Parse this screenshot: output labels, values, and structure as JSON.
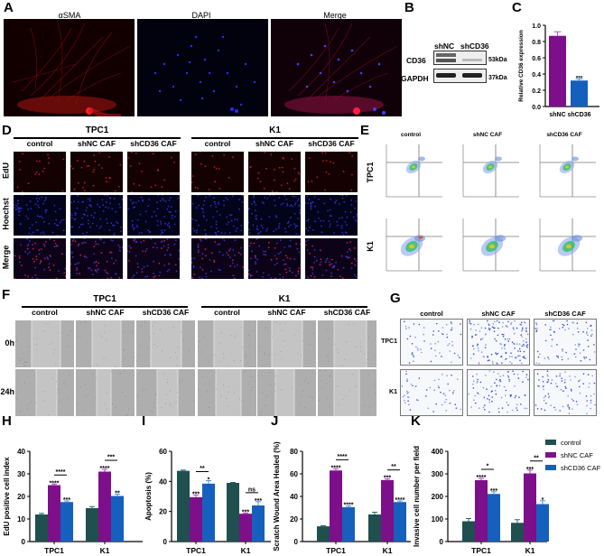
{
  "panels": {
    "A": {
      "label": "A",
      "columns": [
        "αSMA",
        "DAPI",
        "Merge"
      ]
    },
    "B": {
      "label": "B",
      "lanes": [
        "shNC",
        "shCD36"
      ],
      "rows": [
        {
          "protein": "CD36",
          "size": "53kDa"
        },
        {
          "protein": "GAPDH",
          "size": "37kDa"
        }
      ]
    },
    "C": {
      "label": "C"
    },
    "D": {
      "label": "D",
      "groups": [
        "TPC1",
        "K1"
      ],
      "columns": [
        "control",
        "shNC CAF",
        "shCD36 CAF"
      ],
      "rows": [
        "EdU",
        "Hoechst",
        "Merge"
      ]
    },
    "E": {
      "label": "E",
      "columns": [
        "control",
        "shNC CAF",
        "shCD36 CAF"
      ],
      "rows": [
        "TPC1",
        "K1"
      ]
    },
    "F": {
      "label": "F",
      "groups": [
        "TPC1",
        "K1"
      ],
      "columns": [
        "control",
        "shNC CAF",
        "shCD36 CAF"
      ],
      "rows": [
        "0h",
        "24h"
      ]
    },
    "G": {
      "label": "G",
      "columns": [
        "control",
        "shNC CAF",
        "shCD36 CAF"
      ],
      "rows": [
        "TPC1",
        "K1"
      ]
    },
    "H": {
      "label": "H"
    },
    "I": {
      "label": "I"
    },
    "J": {
      "label": "J"
    },
    "K": {
      "label": "K"
    }
  },
  "legend": [
    {
      "name": "control",
      "color": "#1f4f4f"
    },
    {
      "name": "shNC CAF",
      "color": "#7d0f8a"
    },
    {
      "name": "shCD36 CAF",
      "color": "#1560bd"
    }
  ],
  "chart_data": [
    {
      "panel": "C",
      "type": "bar",
      "title": "",
      "xlabel": "",
      "ylabel": "Relative CD36 expression",
      "categories": [
        "shNC",
        "shCD36"
      ],
      "values": [
        0.87,
        0.32
      ],
      "errors": [
        0.05,
        0.02
      ],
      "colors": [
        "#7d0f8a",
        "#1560bd"
      ],
      "significance": [
        "",
        "***"
      ],
      "ylim": [
        0,
        1.0
      ],
      "yticks": [
        0.0,
        0.2,
        0.4,
        0.6,
        0.8,
        1.0
      ]
    },
    {
      "panel": "H",
      "type": "bar",
      "ylabel": "EdU positive cell index",
      "categories": [
        "TPC1",
        "K1"
      ],
      "series": [
        {
          "name": "control",
          "values": [
            12,
            14.8
          ],
          "errors": [
            0.5,
            0.7
          ]
        },
        {
          "name": "shNC CAF",
          "values": [
            25,
            31
          ],
          "errors": [
            0.5,
            1.0
          ],
          "significance": [
            "****",
            "****"
          ]
        },
        {
          "name": "shCD36 CAF",
          "values": [
            17.5,
            20.2
          ],
          "errors": [
            0.5,
            0.8
          ],
          "significance": [
            "***",
            "**"
          ]
        }
      ],
      "brackets": [
        "****",
        "***"
      ],
      "ylim": [
        0,
        40
      ],
      "yticks": [
        0,
        10,
        20,
        30,
        40
      ]
    },
    {
      "panel": "I",
      "type": "bar",
      "ylabel": "Apoptosis (%)",
      "categories": [
        "TPC1",
        "K1"
      ],
      "series": [
        {
          "name": "control",
          "values": [
            47,
            39
          ],
          "errors": [
            0.5,
            0.3
          ]
        },
        {
          "name": "shNC CAF",
          "values": [
            29.5,
            18.5
          ],
          "errors": [
            1.5,
            0.5
          ],
          "significance": [
            "***",
            "***"
          ]
        },
        {
          "name": "shCD36 CAF",
          "values": [
            38.5,
            24
          ],
          "errors": [
            2,
            2.5
          ],
          "significance": [
            "*",
            "***"
          ]
        }
      ],
      "brackets": [
        "**",
        "ns"
      ],
      "ylim": [
        0,
        60
      ],
      "yticks": [
        0,
        20,
        40,
        60
      ]
    },
    {
      "panel": "J",
      "type": "bar",
      "ylabel": "Scratch Wound Area Healed (%)",
      "categories": [
        "TPC1",
        "K1"
      ],
      "series": [
        {
          "name": "control",
          "values": [
            13.5,
            24
          ],
          "errors": [
            0.5,
            2
          ]
        },
        {
          "name": "shNC CAF",
          "values": [
            63,
            54.5
          ],
          "errors": [
            1.5,
            1
          ],
          "significance": [
            "****",
            "***"
          ]
        },
        {
          "name": "shCD36 CAF",
          "values": [
            30.5,
            35
          ],
          "errors": [
            1,
            1
          ],
          "significance": [
            "****",
            "****"
          ]
        }
      ],
      "brackets": [
        "****",
        "**"
      ],
      "ylim": [
        0,
        80
      ],
      "yticks": [
        0,
        20,
        40,
        60,
        80
      ]
    },
    {
      "panel": "K",
      "type": "bar",
      "ylabel": "Invasive cell number per field",
      "categories": [
        "TPC1",
        "K1"
      ],
      "series": [
        {
          "name": "control",
          "values": [
            90,
            83
          ],
          "errors": [
            12,
            14
          ]
        },
        {
          "name": "shNC CAF",
          "values": [
            272,
            302
          ],
          "errors": [
            8,
            15
          ],
          "significance": [
            "****",
            "***"
          ]
        },
        {
          "name": "shCD36 CAF",
          "values": [
            211,
            166
          ],
          "errors": [
            10,
            15
          ],
          "significance": [
            "***",
            "*"
          ]
        }
      ],
      "brackets": [
        "*",
        "**"
      ],
      "ylim": [
        0,
        400
      ],
      "yticks": [
        0,
        100,
        200,
        300,
        400
      ],
      "legend_position": "top-right"
    }
  ]
}
